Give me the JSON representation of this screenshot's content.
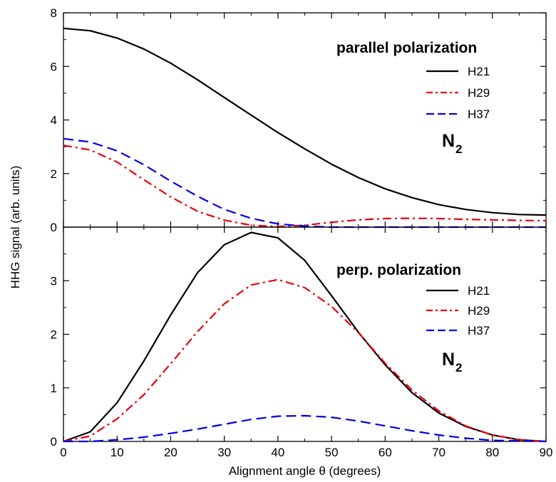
{
  "chart_data": [
    {
      "type": "line",
      "title": "parallel polarization",
      "annotation": "N",
      "annotation_subscript": "2",
      "xlabel": "Alignment angle θ (degrees)",
      "ylabel": "HHG signal (arb. units)",
      "xlim": [
        0,
        90
      ],
      "ylim": [
        0,
        8
      ],
      "xticks": [
        "0",
        "10",
        "20",
        "30",
        "40",
        "50",
        "60",
        "70",
        "80",
        "90"
      ],
      "yticks": [
        "0",
        "2",
        "4",
        "6",
        "8"
      ],
      "x": [
        0,
        5,
        10,
        15,
        20,
        25,
        30,
        35,
        40,
        45,
        50,
        55,
        60,
        65,
        70,
        75,
        80,
        85,
        90
      ],
      "legend_position": "top-right",
      "series": [
        {
          "name": "H21",
          "color": "#000000",
          "dash": "solid",
          "values": [
            7.42,
            7.33,
            7.06,
            6.65,
            6.12,
            5.5,
            4.84,
            4.18,
            3.53,
            2.92,
            2.35,
            1.85,
            1.43,
            1.1,
            0.84,
            0.66,
            0.54,
            0.47,
            0.45
          ]
        },
        {
          "name": "H29",
          "color": "#e8000b",
          "dash": "dashdot",
          "values": [
            3.05,
            2.88,
            2.43,
            1.77,
            1.13,
            0.59,
            0.26,
            0.07,
            0.02,
            0.07,
            0.18,
            0.27,
            0.32,
            0.33,
            0.32,
            0.29,
            0.27,
            0.25,
            0.24
          ]
        },
        {
          "name": "H37",
          "color": "#0000e8",
          "dash": "dashed",
          "values": [
            3.3,
            3.18,
            2.85,
            2.33,
            1.72,
            1.15,
            0.66,
            0.33,
            0.12,
            0.04,
            0.0,
            0.0,
            0.0,
            0.0,
            0.0,
            0.0,
            0.0,
            0.0,
            0.0
          ]
        }
      ]
    },
    {
      "type": "line",
      "title": "perp. polarization",
      "annotation": "N",
      "annotation_subscript": "2",
      "xlabel": "Alignment angle θ (degrees)",
      "ylabel": "HHG signal (arb. units)",
      "xlim": [
        0,
        90
      ],
      "ylim": [
        0,
        4
      ],
      "xticks": [
        "0",
        "10",
        "20",
        "30",
        "40",
        "50",
        "60",
        "70",
        "80",
        "90"
      ],
      "yticks": [
        "0",
        "1",
        "2",
        "3"
      ],
      "x": [
        0,
        5,
        10,
        15,
        20,
        25,
        30,
        35,
        40,
        45,
        50,
        55,
        60,
        65,
        70,
        75,
        80,
        85,
        90
      ],
      "legend_position": "middle-right",
      "series": [
        {
          "name": "H21",
          "color": "#000000",
          "dash": "solid",
          "values": [
            0.0,
            0.18,
            0.72,
            1.5,
            2.36,
            3.15,
            3.67,
            3.9,
            3.8,
            3.38,
            2.72,
            2.04,
            1.43,
            0.91,
            0.53,
            0.28,
            0.12,
            0.03,
            0.0
          ]
        },
        {
          "name": "H29",
          "color": "#e8000b",
          "dash": "dashdot",
          "values": [
            0.0,
            0.1,
            0.42,
            0.87,
            1.45,
            2.05,
            2.57,
            2.92,
            3.02,
            2.87,
            2.52,
            2.03,
            1.46,
            0.96,
            0.57,
            0.29,
            0.12,
            0.03,
            0.0
          ]
        },
        {
          "name": "H37",
          "color": "#0000e8",
          "dash": "dashed",
          "values": [
            0.0,
            0.0,
            0.03,
            0.08,
            0.15,
            0.23,
            0.32,
            0.41,
            0.47,
            0.48,
            0.45,
            0.38,
            0.29,
            0.2,
            0.12,
            0.06,
            0.02,
            0.01,
            0.0
          ]
        }
      ]
    }
  ]
}
